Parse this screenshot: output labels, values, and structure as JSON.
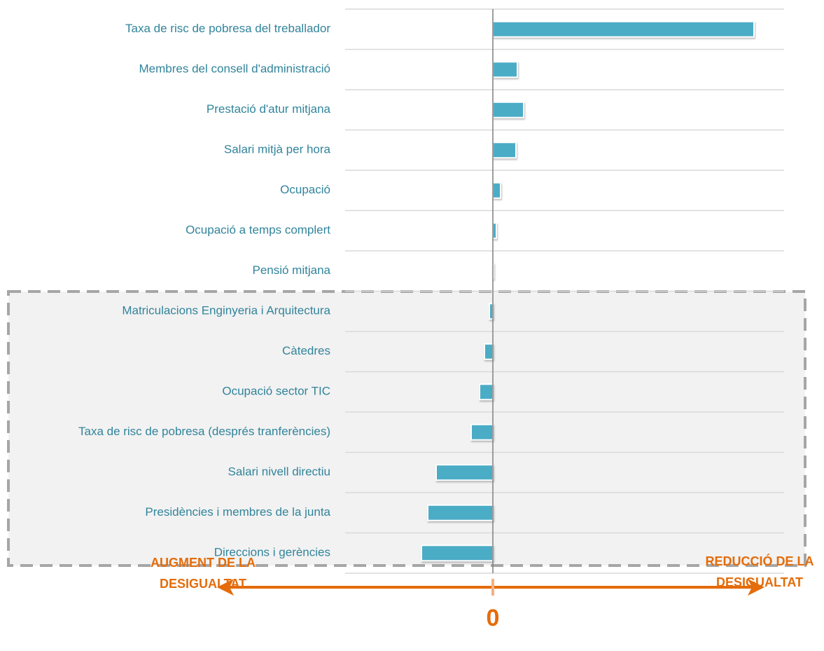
{
  "chart_data": {
    "type": "hbar",
    "categories": [
      "Taxa de risc de pobresa del treballador",
      "Membres del consell d'administració",
      "Prestació d'atur mitjana",
      "Salari mitjà per hora",
      "Ocupació",
      "Ocupació a temps complert",
      "Pensió mitjana",
      "Matriculacions Enginyeria i Arquitectura",
      "Càtedres",
      "Ocupació sector TIC",
      "Taxa de risc de pobresa (després tranferències)",
      "Salari nivell directiu",
      "Presidències i membres de la junta",
      "Direccions i gerències"
    ],
    "values": [
      37.3,
      3.5,
      4.4,
      3.3,
      1.1,
      0.5,
      0.1,
      -0.5,
      -1.2,
      -1.9,
      -3.1,
      -8.1,
      -9.3,
      -10.2
    ],
    "color": "#4bacc6",
    "xlim": [
      -21.1,
      41.6
    ],
    "xticks": [
      0
    ],
    "annotations": {
      "left": [
        "AUGMENT DE LA",
        "DESIGUALTAT"
      ],
      "right": [
        "REDUCCIÓ DE LA",
        "DESIGUALTAT"
      ]
    },
    "accent_color": "#e46c0a"
  }
}
